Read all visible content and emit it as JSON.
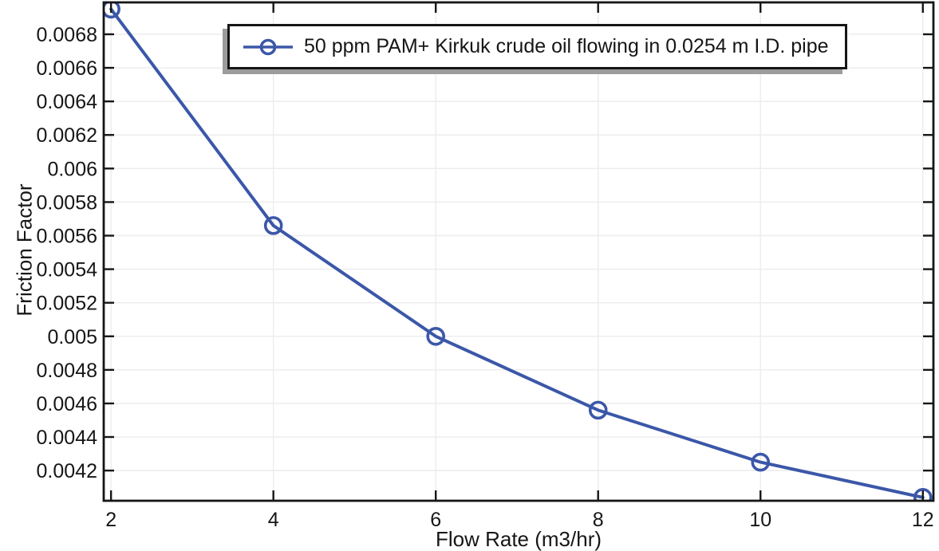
{
  "colors": {
    "background": "#ffffff",
    "line": "#3b57a8",
    "grid": "#ececec",
    "axis": "#161616",
    "text": "#161616",
    "legend_bg": "#ffffff",
    "legend_border": "#161616",
    "legend_shadow": "#9c9c9c"
  },
  "chart_data": {
    "type": "line",
    "title": "",
    "xlabel": "Flow Rate (m3/hr)",
    "ylabel": "Friction Factor",
    "xlim": [
      1.91,
      12.13
    ],
    "ylim": [
      0.00402,
      0.00699
    ],
    "grid": true,
    "frame_ticks": "inward-all-sides",
    "x_ticks": {
      "values": [
        2,
        4,
        6,
        8,
        10,
        12
      ],
      "labels": [
        "2",
        "4",
        "6",
        "8",
        "10",
        "12"
      ]
    },
    "y_ticks": {
      "values": [
        0.0042,
        0.0044,
        0.0046,
        0.0048,
        0.005,
        0.0052,
        0.0054,
        0.0056,
        0.0058,
        0.006,
        0.0062,
        0.0064,
        0.0066,
        0.0068
      ],
      "labels": [
        "0.0042",
        "0.0044",
        "0.0046",
        "0.0048",
        "0.005",
        "0.0052",
        "0.0054",
        "0.0056",
        "0.0058",
        "0.006",
        "0.0062",
        "0.0064",
        "0.0066",
        "0.0068"
      ]
    },
    "legend": {
      "position": "top-inside",
      "marker": "line-with-open-circle"
    },
    "series": [
      {
        "name": "50 ppm PAM+ Kirkuk crude oil flowing in 0.0254 m I.D. pipe",
        "marker": "open-circle",
        "x": [
          2,
          4,
          6,
          8,
          10,
          12
        ],
        "y": [
          0.00695,
          0.00566,
          0.005,
          0.00456,
          0.00425,
          0.00404
        ]
      }
    ]
  }
}
